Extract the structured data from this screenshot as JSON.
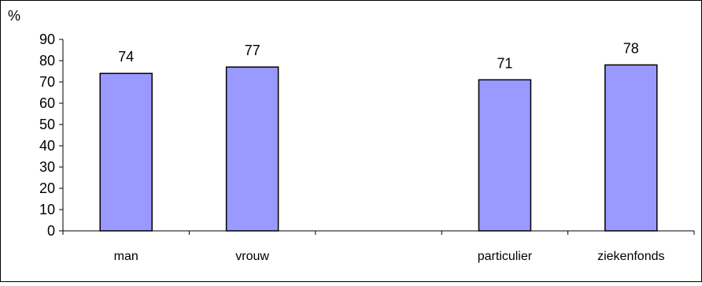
{
  "chart_data": {
    "type": "bar",
    "ylabel": "%",
    "xlabel": "",
    "title": "",
    "categories": [
      "man",
      "vrouw",
      "",
      "particulier",
      "ziekenfonds"
    ],
    "values": [
      74,
      77,
      null,
      71,
      78
    ],
    "data_labels": [
      "74",
      "77",
      "",
      "71",
      "78"
    ],
    "ylim": [
      0,
      90
    ],
    "yticks": [
      0,
      10,
      20,
      30,
      40,
      50,
      60,
      70,
      80,
      90
    ],
    "grid": false,
    "legend": "none",
    "bar_color": "#9999FF",
    "bar_edge_color": "#000000"
  }
}
